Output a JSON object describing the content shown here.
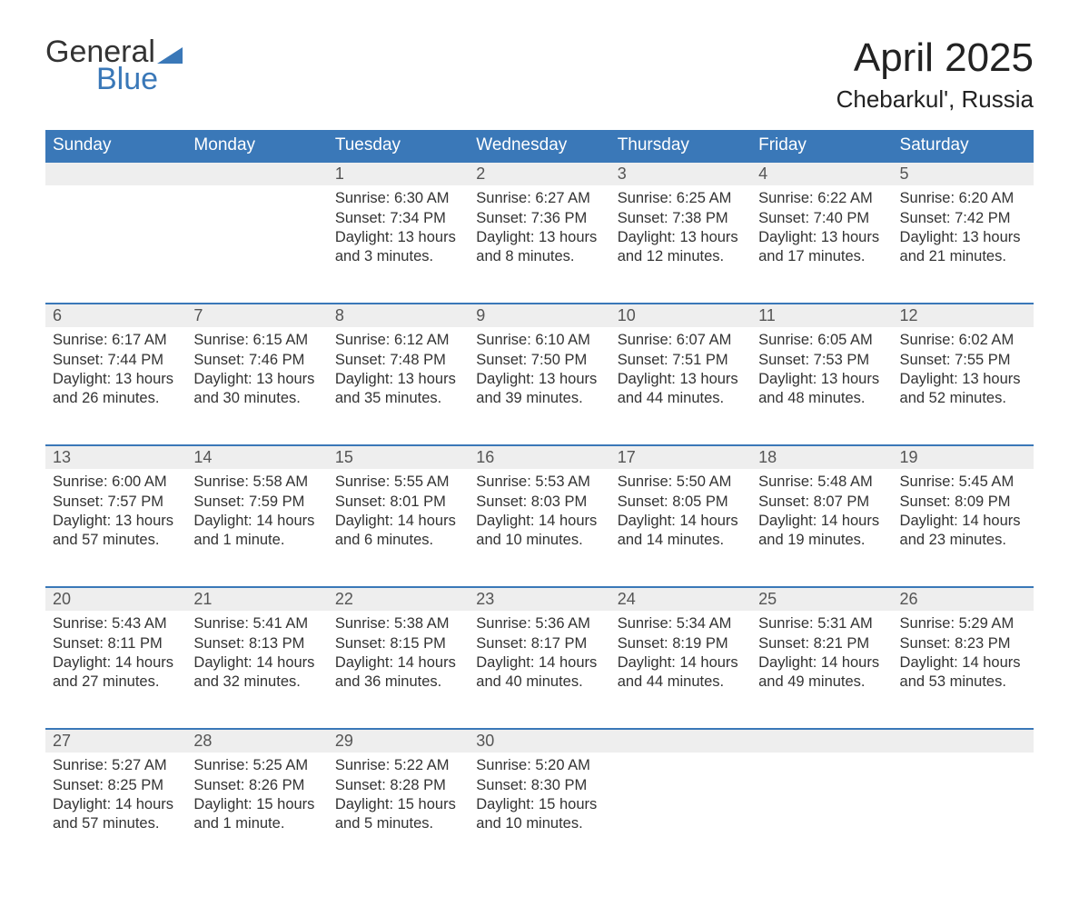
{
  "logo": {
    "word1": "General",
    "word2": "Blue",
    "accent_color": "#3a78b8"
  },
  "title": "April 2025",
  "location": "Chebarkul', Russia",
  "colors": {
    "header_bg": "#3a78b8",
    "header_text": "#ffffff",
    "daynum_bg": "#eeeeee",
    "row_top_border": "#3a78b8",
    "body_text": "#333333",
    "background": "#ffffff"
  },
  "typography": {
    "title_fontsize": 44,
    "location_fontsize": 26,
    "weekday_fontsize": 19,
    "daynum_fontsize": 18,
    "cell_fontsize": 16.5,
    "font_family": "Segoe UI"
  },
  "layout": {
    "columns": 7,
    "rows": 5,
    "leading_blank_cells": 2
  },
  "weekdays": [
    "Sunday",
    "Monday",
    "Tuesday",
    "Wednesday",
    "Thursday",
    "Friday",
    "Saturday"
  ],
  "days": [
    {
      "n": 1,
      "sunrise": "6:30 AM",
      "sunset": "7:34 PM",
      "daylight": "13 hours and 3 minutes."
    },
    {
      "n": 2,
      "sunrise": "6:27 AM",
      "sunset": "7:36 PM",
      "daylight": "13 hours and 8 minutes."
    },
    {
      "n": 3,
      "sunrise": "6:25 AM",
      "sunset": "7:38 PM",
      "daylight": "13 hours and 12 minutes."
    },
    {
      "n": 4,
      "sunrise": "6:22 AM",
      "sunset": "7:40 PM",
      "daylight": "13 hours and 17 minutes."
    },
    {
      "n": 5,
      "sunrise": "6:20 AM",
      "sunset": "7:42 PM",
      "daylight": "13 hours and 21 minutes."
    },
    {
      "n": 6,
      "sunrise": "6:17 AM",
      "sunset": "7:44 PM",
      "daylight": "13 hours and 26 minutes."
    },
    {
      "n": 7,
      "sunrise": "6:15 AM",
      "sunset": "7:46 PM",
      "daylight": "13 hours and 30 minutes."
    },
    {
      "n": 8,
      "sunrise": "6:12 AM",
      "sunset": "7:48 PM",
      "daylight": "13 hours and 35 minutes."
    },
    {
      "n": 9,
      "sunrise": "6:10 AM",
      "sunset": "7:50 PM",
      "daylight": "13 hours and 39 minutes."
    },
    {
      "n": 10,
      "sunrise": "6:07 AM",
      "sunset": "7:51 PM",
      "daylight": "13 hours and 44 minutes."
    },
    {
      "n": 11,
      "sunrise": "6:05 AM",
      "sunset": "7:53 PM",
      "daylight": "13 hours and 48 minutes."
    },
    {
      "n": 12,
      "sunrise": "6:02 AM",
      "sunset": "7:55 PM",
      "daylight": "13 hours and 52 minutes."
    },
    {
      "n": 13,
      "sunrise": "6:00 AM",
      "sunset": "7:57 PM",
      "daylight": "13 hours and 57 minutes."
    },
    {
      "n": 14,
      "sunrise": "5:58 AM",
      "sunset": "7:59 PM",
      "daylight": "14 hours and 1 minute."
    },
    {
      "n": 15,
      "sunrise": "5:55 AM",
      "sunset": "8:01 PM",
      "daylight": "14 hours and 6 minutes."
    },
    {
      "n": 16,
      "sunrise": "5:53 AM",
      "sunset": "8:03 PM",
      "daylight": "14 hours and 10 minutes."
    },
    {
      "n": 17,
      "sunrise": "5:50 AM",
      "sunset": "8:05 PM",
      "daylight": "14 hours and 14 minutes."
    },
    {
      "n": 18,
      "sunrise": "5:48 AM",
      "sunset": "8:07 PM",
      "daylight": "14 hours and 19 minutes."
    },
    {
      "n": 19,
      "sunrise": "5:45 AM",
      "sunset": "8:09 PM",
      "daylight": "14 hours and 23 minutes."
    },
    {
      "n": 20,
      "sunrise": "5:43 AM",
      "sunset": "8:11 PM",
      "daylight": "14 hours and 27 minutes."
    },
    {
      "n": 21,
      "sunrise": "5:41 AM",
      "sunset": "8:13 PM",
      "daylight": "14 hours and 32 minutes."
    },
    {
      "n": 22,
      "sunrise": "5:38 AM",
      "sunset": "8:15 PM",
      "daylight": "14 hours and 36 minutes."
    },
    {
      "n": 23,
      "sunrise": "5:36 AM",
      "sunset": "8:17 PM",
      "daylight": "14 hours and 40 minutes."
    },
    {
      "n": 24,
      "sunrise": "5:34 AM",
      "sunset": "8:19 PM",
      "daylight": "14 hours and 44 minutes."
    },
    {
      "n": 25,
      "sunrise": "5:31 AM",
      "sunset": "8:21 PM",
      "daylight": "14 hours and 49 minutes."
    },
    {
      "n": 26,
      "sunrise": "5:29 AM",
      "sunset": "8:23 PM",
      "daylight": "14 hours and 53 minutes."
    },
    {
      "n": 27,
      "sunrise": "5:27 AM",
      "sunset": "8:25 PM",
      "daylight": "14 hours and 57 minutes."
    },
    {
      "n": 28,
      "sunrise": "5:25 AM",
      "sunset": "8:26 PM",
      "daylight": "15 hours and 1 minute."
    },
    {
      "n": 29,
      "sunrise": "5:22 AM",
      "sunset": "8:28 PM",
      "daylight": "15 hours and 5 minutes."
    },
    {
      "n": 30,
      "sunrise": "5:20 AM",
      "sunset": "8:30 PM",
      "daylight": "15 hours and 10 minutes."
    }
  ],
  "labels": {
    "sunrise": "Sunrise:",
    "sunset": "Sunset:",
    "daylight": "Daylight:"
  }
}
